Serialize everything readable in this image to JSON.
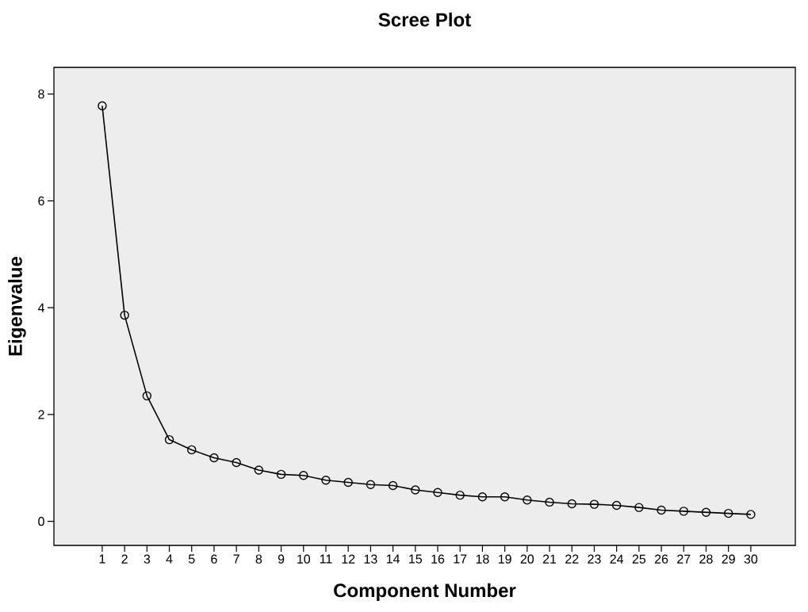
{
  "chart_data": {
    "type": "line",
    "title": "Scree Plot",
    "xlabel": "Component Number",
    "ylabel": "Eigenvalue",
    "categories": [
      "1",
      "2",
      "3",
      "4",
      "5",
      "6",
      "7",
      "8",
      "9",
      "10",
      "11",
      "12",
      "13",
      "14",
      "15",
      "16",
      "17",
      "18",
      "19",
      "20",
      "21",
      "22",
      "23",
      "24",
      "25",
      "26",
      "27",
      "28",
      "29",
      "30"
    ],
    "series": [
      {
        "color": "#000000",
        "values": [
          7.78,
          3.86,
          2.35,
          1.53,
          1.34,
          1.19,
          1.1,
          0.96,
          0.88,
          0.86,
          0.77,
          0.73,
          0.69,
          0.67,
          0.59,
          0.54,
          0.49,
          0.46,
          0.46,
          0.4,
          0.36,
          0.33,
          0.32,
          0.3,
          0.26,
          0.21,
          0.19,
          0.17,
          0.15,
          0.13
        ]
      }
    ],
    "ylim": [
      -0.45,
      8.5
    ],
    "yticks": [
      0,
      2,
      4,
      6,
      8
    ],
    "grid": false,
    "marker": "circle",
    "line_style": "solid"
  }
}
